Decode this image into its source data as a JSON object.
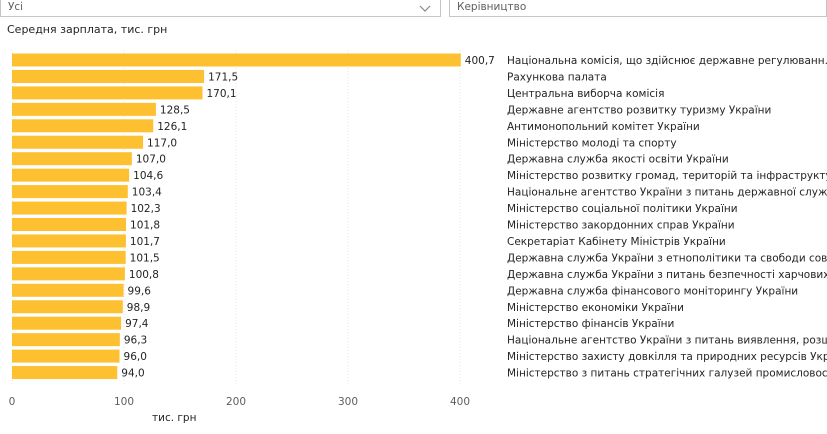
{
  "filters": [
    {
      "value": "Усі",
      "has_dropdown": true
    },
    {
      "value": "Керівництво",
      "has_dropdown": false
    }
  ],
  "chart_data": {
    "type": "bar",
    "orientation": "horizontal",
    "title": "Середня зарплата, тис. грн",
    "xlabel": "тис. грн",
    "xlim": [
      0,
      400
    ],
    "xticks": [
      0,
      100,
      200,
      300,
      400
    ],
    "grid": true,
    "color": "#fdc031",
    "categories": [
      "Національна комісія, що здійснює державне регулюванн...",
      "Рахункова палата",
      "Центральна виборча комісія",
      "Державне агентство розвитку туризму України",
      "Антимонопольний комітет України",
      "Міністерство молоді та спорту",
      "Державна служба якості освіти України",
      "Міністерство розвитку громад, територій та інфраструкту...",
      "Національне агентство України з питань державної служби",
      "Міністерство соціальної політики України",
      "Міністерство закордонних справ України",
      "Секретаріат Кабінету Міністрів України",
      "Державна служба України з етнополітики та свободи сові...",
      "Державна служба України з питань безпечності харчових...",
      "Державна служба фінансового моніторингу України",
      "Міністерство економіки України",
      "Міністерство фінансів України",
      "Національне агентство України з питань виявлення, розш...",
      "Міністерство захисту довкілля та природних ресурсів Укр...",
      "Міністерство з питань стратегічних галузей промисловост..."
    ],
    "values": [
      400.7,
      171.5,
      170.1,
      128.5,
      126.1,
      117.0,
      107.0,
      104.6,
      103.4,
      102.3,
      101.8,
      101.7,
      101.5,
      100.8,
      99.6,
      98.9,
      97.4,
      96.3,
      96.0,
      94.0
    ],
    "value_labels": [
      "400,7",
      "171,5",
      "170,1",
      "128,5",
      "126,1",
      "117,0",
      "107,0",
      "104,6",
      "103,4",
      "102,3",
      "101,8",
      "101,7",
      "101,5",
      "100,8",
      "99,6",
      "98,9",
      "97,4",
      "96,3",
      "96,0",
      "94,0"
    ],
    "tick_labels": [
      "0",
      "100",
      "200",
      "300",
      "400"
    ]
  }
}
